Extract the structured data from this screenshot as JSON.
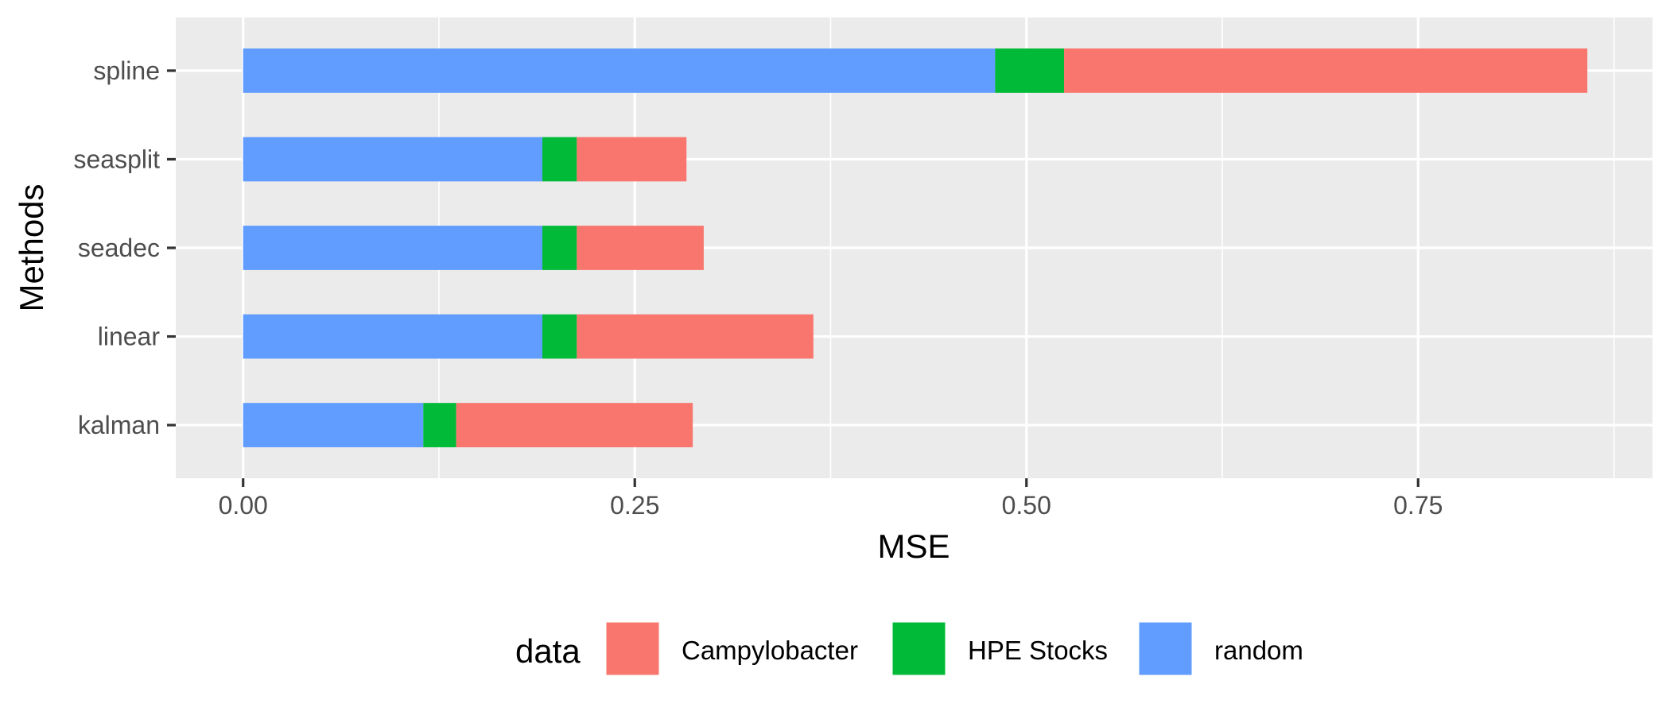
{
  "chart_data": {
    "type": "bar",
    "orientation": "horizontal",
    "stacked": true,
    "xlabel": "MSE",
    "ylabel": "Methods",
    "categories": [
      "kalman",
      "linear",
      "seadec",
      "seasplit",
      "spline"
    ],
    "series": [
      {
        "name": "random",
        "color": "#619CFF",
        "values": [
          0.115,
          0.191,
          0.191,
          0.191,
          0.48
        ]
      },
      {
        "name": "HPE Stocks",
        "color": "#00BA38",
        "values": [
          0.021,
          0.022,
          0.022,
          0.022,
          0.044
        ]
      },
      {
        "name": "Campylobacter",
        "color": "#F8766D",
        "values": [
          0.151,
          0.151,
          0.081,
          0.07,
          0.334
        ]
      }
    ],
    "stack_order": [
      "random",
      "HPE Stocks",
      "Campylobacter"
    ],
    "xlim": [
      -0.043,
      0.8996
    ],
    "xticks": [
      0.0,
      0.25,
      0.5,
      0.75
    ],
    "xtick_labels": [
      "0.00",
      "0.25",
      "0.50",
      "0.75"
    ],
    "x_minor_gridlines": [
      0.125,
      0.375,
      0.625,
      0.875
    ],
    "grid": true,
    "panel_background": "#EBEBEB",
    "gridline_color": "#FFFFFF",
    "legend": {
      "title": "data",
      "position": "bottom",
      "entries": [
        {
          "label": "Campylobacter",
          "color": "#F8766D"
        },
        {
          "label": "HPE Stocks",
          "color": "#00BA38"
        },
        {
          "label": "random",
          "color": "#619CFF"
        }
      ]
    }
  }
}
